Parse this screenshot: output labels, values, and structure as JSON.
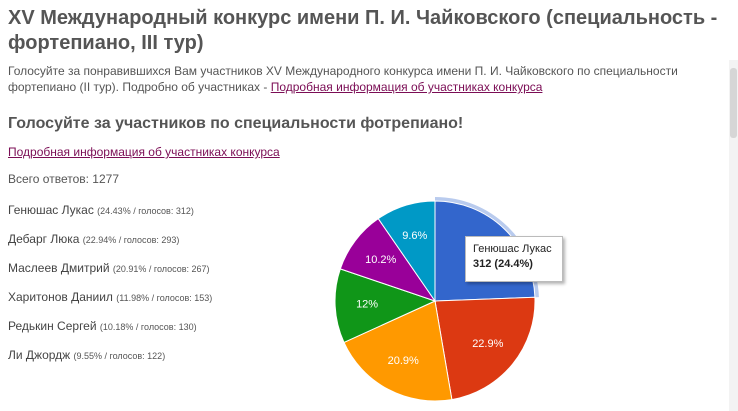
{
  "page": {
    "title": "XV Международный конкурс имени П. И. Чайковского (специальность - фортепиано, III тур)",
    "intro_text": "Голосуйте за понравившихся Вам участников XV Международного конкурса имени П. И. Чайковского по специальности фортепиано (II тур). Подробно об участниках - ",
    "intro_link": "Подробная информация об участниках конкурса"
  },
  "poll": {
    "heading": "Голосуйте за участников по специальности фотрепиано!",
    "details_link": "Подробная информация об участниках конкурса",
    "total_label": "Всего ответов: 1277",
    "results": [
      {
        "name": "Генюшас Лукас",
        "stat": "(24.43% / голосов: 312)"
      },
      {
        "name": "Дебарг Люка",
        "stat": "(22.94% / голосов: 293)"
      },
      {
        "name": "Маслеев Дмитрий",
        "stat": "(20.91% / голосов: 267)"
      },
      {
        "name": "Харитонов Даниил",
        "stat": "(11.98% / голосов: 153)"
      },
      {
        "name": "Редькин Сергей",
        "stat": "(10.18% / голосов: 130)"
      },
      {
        "name": "Ли Джордж",
        "stat": "(9.55% / голосов: 122)"
      }
    ]
  },
  "chart_data": {
    "type": "pie",
    "slices": [
      {
        "name": "Генюшас Лукас",
        "value": 24.4,
        "label": "",
        "color": "#3366cc"
      },
      {
        "name": "Дебарг Люка",
        "value": 22.9,
        "label": "22.9%",
        "color": "#dc3912"
      },
      {
        "name": "Маслеев Дмитрий",
        "value": 20.9,
        "label": "20.9%",
        "color": "#ff9900"
      },
      {
        "name": "Харитонов Даниил",
        "value": 12.0,
        "label": "12%",
        "color": "#109618"
      },
      {
        "name": "Редькин Сергей",
        "value": 10.2,
        "label": "10.2%",
        "color": "#990099"
      },
      {
        "name": "Ли Джордж",
        "value": 9.6,
        "label": "9.6%",
        "color": "#0099c6"
      }
    ],
    "highlighted_slice": 0,
    "tooltip": {
      "name": "Генюшас Лукас",
      "value": "312 (24.4%)"
    }
  }
}
